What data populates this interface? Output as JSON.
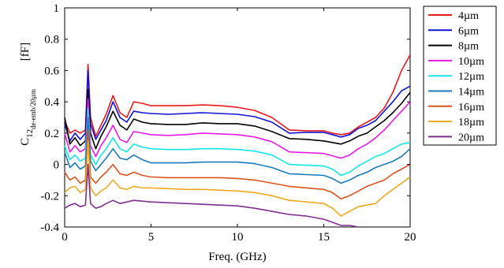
{
  "chart_data": {
    "type": "line",
    "xlabel": "Freq. (GHz)",
    "ylabel": {
      "main": "C",
      "sub1": "12",
      "sub2": "de-emb/20µm",
      "unit": "[fF]"
    },
    "xlim": [
      0,
      20
    ],
    "ylim": [
      -0.4,
      1.0
    ],
    "xticks": [
      0,
      5,
      10,
      15,
      20
    ],
    "yticks": [
      -0.4,
      -0.2,
      0,
      0.2,
      0.4,
      0.6,
      0.8,
      1.0
    ],
    "ytick_labels": [
      "-0.4",
      "-0.2",
      "0",
      "0.2",
      "0.4",
      "0.6",
      "0.8",
      "1"
    ],
    "grid": false,
    "legend_position": "outside-right",
    "x": [
      0,
      0.3,
      0.6,
      0.9,
      1.2,
      1.35,
      1.5,
      1.8,
      2.1,
      2.4,
      2.8,
      3.2,
      3.6,
      4.0,
      4.5,
      5.0,
      6.0,
      7.0,
      8.0,
      9.0,
      10.0,
      11.0,
      12.0,
      13.0,
      14.0,
      15.0,
      15.5,
      16.0,
      16.5,
      17.0,
      17.5,
      18.0,
      18.5,
      19.0,
      19.5,
      20.0
    ],
    "series": [
      {
        "name": "4µm",
        "color": "#e8191c",
        "values": [
          0.28,
          0.2,
          0.22,
          0.2,
          0.22,
          0.64,
          0.3,
          0.18,
          0.25,
          0.32,
          0.44,
          0.33,
          0.3,
          0.4,
          0.39,
          0.375,
          0.375,
          0.375,
          0.38,
          0.375,
          0.365,
          0.345,
          0.3,
          0.22,
          0.215,
          0.215,
          0.2,
          0.19,
          0.2,
          0.24,
          0.27,
          0.3,
          0.36,
          0.46,
          0.6,
          0.7
        ]
      },
      {
        "name": "6µm",
        "color": "#1010d8",
        "values": [
          0.26,
          0.15,
          0.2,
          0.16,
          0.2,
          0.6,
          0.26,
          0.16,
          0.22,
          0.28,
          0.4,
          0.3,
          0.27,
          0.34,
          0.33,
          0.325,
          0.32,
          0.325,
          0.33,
          0.325,
          0.32,
          0.305,
          0.27,
          0.2,
          0.205,
          0.205,
          0.19,
          0.175,
          0.19,
          0.23,
          0.25,
          0.28,
          0.34,
          0.4,
          0.47,
          0.5
        ]
      },
      {
        "name": "8µm",
        "color": "#000000",
        "values": [
          0.3,
          0.13,
          0.17,
          0.12,
          0.15,
          0.48,
          0.2,
          0.1,
          0.18,
          0.24,
          0.34,
          0.25,
          0.22,
          0.29,
          0.27,
          0.26,
          0.255,
          0.255,
          0.265,
          0.26,
          0.26,
          0.245,
          0.21,
          0.165,
          0.16,
          0.15,
          0.14,
          0.13,
          0.15,
          0.18,
          0.2,
          0.24,
          0.28,
          0.33,
          0.39,
          0.46
        ]
      },
      {
        "name": "10µm",
        "color": "#ea19ea",
        "values": [
          0.2,
          0.08,
          0.12,
          0.08,
          0.1,
          0.42,
          0.12,
          0.05,
          0.12,
          0.17,
          0.25,
          0.16,
          0.14,
          0.21,
          0.2,
          0.19,
          0.185,
          0.19,
          0.2,
          0.195,
          0.19,
          0.175,
          0.145,
          0.08,
          0.075,
          0.07,
          0.055,
          0.04,
          0.06,
          0.1,
          0.13,
          0.17,
          0.22,
          0.28,
          0.34,
          0.4
        ]
      },
      {
        "name": "12µm",
        "color": "#12e6e6",
        "values": [
          0.12,
          0.03,
          0.06,
          0.02,
          0.04,
          0.36,
          0.06,
          0.0,
          0.06,
          0.1,
          0.17,
          0.1,
          0.08,
          0.13,
          0.11,
          0.1,
          0.095,
          0.095,
          0.1,
          0.1,
          0.095,
          0.085,
          0.06,
          0.0,
          -0.005,
          -0.01,
          -0.03,
          -0.07,
          -0.05,
          -0.01,
          0.02,
          0.05,
          0.07,
          0.1,
          0.13,
          0.14
        ]
      },
      {
        "name": "14µm",
        "color": "#1a7ab8",
        "values": [
          0.08,
          -0.02,
          0.01,
          -0.03,
          -0.01,
          0.3,
          0.02,
          -0.04,
          0.0,
          0.04,
          0.1,
          0.04,
          0.03,
          0.06,
          0.03,
          0.01,
          0.01,
          0.01,
          0.015,
          0.015,
          0.015,
          0.005,
          -0.02,
          -0.06,
          -0.065,
          -0.07,
          -0.09,
          -0.12,
          -0.1,
          -0.07,
          -0.05,
          -0.02,
          0.0,
          0.02,
          0.05,
          0.1
        ]
      },
      {
        "name": "16µm",
        "color": "#d9531e",
        "values": [
          -0.05,
          -0.1,
          -0.08,
          -0.12,
          -0.1,
          0.22,
          -0.08,
          -0.12,
          -0.08,
          -0.05,
          0.0,
          -0.06,
          -0.07,
          -0.05,
          -0.07,
          -0.08,
          -0.085,
          -0.085,
          -0.085,
          -0.085,
          -0.09,
          -0.1,
          -0.12,
          -0.14,
          -0.15,
          -0.16,
          -0.18,
          -0.22,
          -0.2,
          -0.17,
          -0.14,
          -0.12,
          -0.1,
          -0.06,
          -0.03,
          0.0
        ]
      },
      {
        "name": "18µm",
        "color": "#eda920",
        "values": [
          -0.18,
          -0.15,
          -0.14,
          -0.18,
          -0.16,
          0.15,
          -0.15,
          -0.2,
          -0.17,
          -0.15,
          -0.1,
          -0.15,
          -0.16,
          -0.14,
          -0.15,
          -0.15,
          -0.155,
          -0.16,
          -0.16,
          -0.165,
          -0.17,
          -0.18,
          -0.2,
          -0.23,
          -0.24,
          -0.25,
          -0.28,
          -0.33,
          -0.3,
          -0.27,
          -0.26,
          -0.25,
          -0.2,
          -0.16,
          -0.12,
          -0.08
        ]
      },
      {
        "name": "20µm",
        "color": "#7e2f8e",
        "values": [
          -0.28,
          -0.26,
          -0.25,
          -0.27,
          -0.26,
          0.0,
          -0.25,
          -0.28,
          -0.27,
          -0.25,
          -0.23,
          -0.25,
          -0.24,
          -0.23,
          -0.235,
          -0.24,
          -0.245,
          -0.25,
          -0.255,
          -0.26,
          -0.265,
          -0.28,
          -0.3,
          -0.32,
          -0.33,
          -0.35,
          -0.37,
          -0.39,
          -0.39,
          -0.4,
          null,
          null,
          null,
          null,
          null,
          null
        ]
      }
    ]
  }
}
